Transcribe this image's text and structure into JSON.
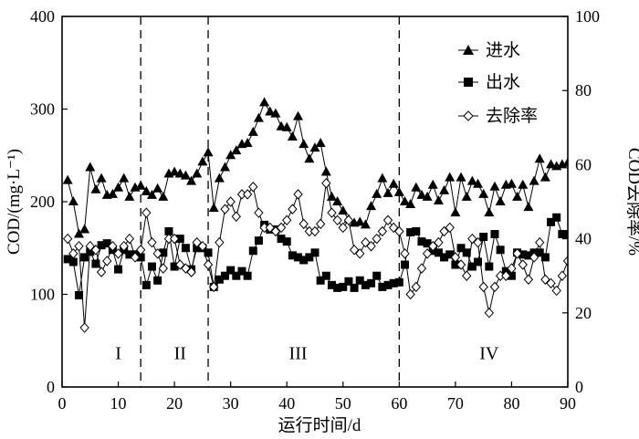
{
  "chart_data": {
    "type": "line",
    "xlabel": "运行时间/d",
    "ylabel_left": "COD/(mg·L⁻¹)",
    "ylabel_right": "COD去除率/%",
    "xlim": [
      0,
      90
    ],
    "ylim_left": [
      0,
      400
    ],
    "ylim_right": [
      0,
      100
    ],
    "x_ticks": [
      "0",
      "10",
      "20",
      "30",
      "40",
      "50",
      "60",
      "70",
      "80",
      "90"
    ],
    "y_left_ticks": [
      "0",
      "100",
      "200",
      "300",
      "400"
    ],
    "y_right_ticks": [
      "0",
      "20",
      "40",
      "60",
      "80",
      "100"
    ],
    "phase_boundaries": [
      14,
      26,
      60
    ],
    "phases": [
      {
        "label": "I",
        "x": 10
      },
      {
        "label": "II",
        "x": 21
      },
      {
        "label": "III",
        "x": 42
      },
      {
        "label": "IV",
        "x": 76
      }
    ],
    "legend": {
      "position": "top-right",
      "entries": [
        "进水",
        "出水",
        "去除率"
      ]
    },
    "series": [
      {
        "name": "进水",
        "axis": "left",
        "marker": "triangle",
        "x": [
          1,
          2,
          3,
          4,
          5,
          6,
          7,
          8,
          9,
          10,
          11,
          12,
          13,
          14,
          15,
          16,
          17,
          18,
          19,
          20,
          21,
          22,
          23,
          24,
          25,
          26,
          27,
          28,
          29,
          30,
          31,
          32,
          33,
          34,
          35,
          36,
          37,
          38,
          39,
          40,
          41,
          42,
          43,
          44,
          45,
          46,
          47,
          48,
          49,
          50,
          51,
          52,
          53,
          54,
          55,
          56,
          57,
          58,
          59,
          60,
          61,
          62,
          63,
          64,
          65,
          66,
          67,
          68,
          69,
          70,
          71,
          72,
          73,
          74,
          75,
          76,
          77,
          78,
          79,
          80,
          81,
          82,
          83,
          84,
          85,
          86,
          87,
          88,
          89,
          90
        ],
        "values": [
          223,
          200,
          165,
          170,
          237,
          213,
          225,
          207,
          208,
          215,
          225,
          205,
          215,
          217,
          211,
          207,
          214,
          205,
          230,
          232,
          230,
          228,
          222,
          230,
          243,
          253,
          193,
          225,
          237,
          250,
          255,
          262,
          263,
          275,
          290,
          307,
          297,
          295,
          281,
          280,
          270,
          292,
          262,
          246,
          258,
          263,
          232,
          205,
          200,
          190,
          181,
          177,
          178,
          175,
          195,
          208,
          225,
          209,
          219,
          210,
          200,
          197,
          215,
          207,
          205,
          218,
          201,
          212,
          226,
          188,
          226,
          205,
          222,
          219,
          208,
          188,
          216,
          200,
          218,
          219,
          205,
          218,
          194,
          222,
          246,
          226,
          240,
          238,
          240,
          242
        ]
      },
      {
        "name": "出水",
        "axis": "left",
        "marker": "square",
        "x": [
          1,
          2,
          3,
          4,
          5,
          6,
          7,
          8,
          9,
          10,
          11,
          12,
          13,
          14,
          15,
          16,
          17,
          18,
          19,
          20,
          21,
          22,
          23,
          24,
          25,
          26,
          27,
          28,
          29,
          30,
          31,
          32,
          33,
          34,
          35,
          36,
          37,
          38,
          39,
          40,
          41,
          42,
          43,
          44,
          45,
          46,
          47,
          48,
          49,
          50,
          51,
          52,
          53,
          54,
          55,
          56,
          57,
          58,
          59,
          60,
          61,
          62,
          63,
          64,
          65,
          66,
          67,
          68,
          69,
          70,
          71,
          72,
          73,
          74,
          75,
          76,
          77,
          78,
          79,
          80,
          81,
          82,
          83,
          84,
          85,
          86,
          87,
          88,
          89,
          90
        ],
        "values": [
          138,
          135,
          99,
          140,
          146,
          133,
          153,
          155,
          148,
          127,
          148,
          143,
          143,
          140,
          110,
          130,
          115,
          145,
          168,
          130,
          160,
          150,
          127,
          150,
          150,
          145,
          108,
          116,
          120,
          126,
          120,
          125,
          120,
          147,
          158,
          175,
          170,
          170,
          160,
          157,
          142,
          140,
          137,
          140,
          145,
          115,
          120,
          110,
          107,
          108,
          114,
          107,
          115,
          110,
          112,
          120,
          108,
          110,
          112,
          113,
          132,
          167,
          168,
          157,
          155,
          147,
          145,
          140,
          143,
          132,
          150,
          145,
          130,
          135,
          162,
          130,
          165,
          148,
          125,
          120,
          145,
          143,
          142,
          145,
          145,
          140,
          178,
          183,
          165,
          165
        ]
      },
      {
        "name": "去除率",
        "axis": "right",
        "marker": "diamond",
        "x": [
          1,
          2,
          3,
          4,
          5,
          6,
          7,
          8,
          9,
          10,
          11,
          12,
          13,
          14,
          15,
          16,
          17,
          18,
          19,
          20,
          21,
          22,
          23,
          24,
          25,
          26,
          27,
          28,
          29,
          30,
          31,
          32,
          33,
          34,
          35,
          36,
          37,
          38,
          39,
          40,
          41,
          42,
          43,
          44,
          45,
          46,
          47,
          48,
          49,
          50,
          51,
          52,
          53,
          54,
          55,
          56,
          57,
          58,
          59,
          60,
          61,
          62,
          63,
          64,
          65,
          66,
          67,
          68,
          69,
          70,
          71,
          72,
          73,
          74,
          75,
          76,
          77,
          78,
          79,
          80,
          81,
          82,
          83,
          84,
          85,
          86,
          87,
          88,
          89,
          90
        ],
        "values": [
          40,
          36,
          38,
          16,
          38,
          37,
          31,
          34,
          38,
          36,
          38,
          40,
          35,
          37,
          47,
          39,
          36,
          32,
          40,
          40,
          33,
          32,
          31,
          39,
          38,
          33,
          27,
          39,
          48,
          50,
          46,
          52,
          52,
          54,
          47,
          43,
          43,
          42,
          43,
          45,
          48,
          52,
          44,
          42,
          42,
          44,
          55,
          47,
          45,
          43,
          45,
          37,
          36,
          39,
          38,
          40,
          42,
          45,
          43,
          42,
          36,
          25,
          27,
          32,
          36,
          38,
          39,
          42,
          43,
          35,
          33,
          30,
          40,
          39,
          27,
          20,
          27,
          30,
          30,
          32,
          36,
          33,
          29,
          35,
          39,
          29,
          28,
          26,
          30,
          34
        ]
      }
    ]
  }
}
